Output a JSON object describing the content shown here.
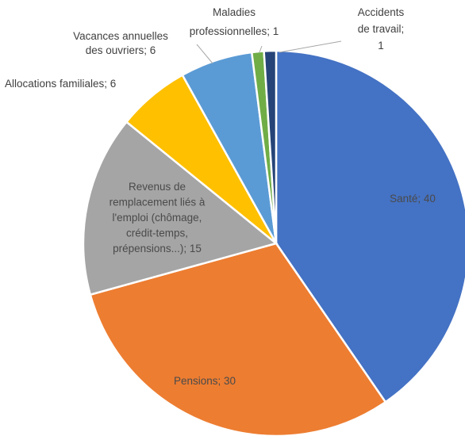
{
  "chart_data": {
    "type": "pie",
    "title": "",
    "slices": [
      {
        "label": "Santé; 40",
        "name": "Santé",
        "value": 40,
        "color": "#4472c4"
      },
      {
        "label": "Pensions; 30",
        "name": "Pensions",
        "value": 30,
        "color": "#ed7d31"
      },
      {
        "label": "Revenus de remplacement liés à l'emploi (chômage, crédit-temps, prépensions...); 15",
        "name": "Revenus de remplacement liés à l'emploi (chômage, crédit-temps, prépensions...)",
        "value": 15,
        "color": "#a5a5a5",
        "label_lines": [
          "Revenus de",
          "remplacement liés à",
          "l'emploi (chômage,",
          "crédit-temps,",
          "prépensions...); 15"
        ]
      },
      {
        "label": "Allocations familiales; 6",
        "name": "Allocations familiales",
        "value": 6,
        "color": "#ffc000"
      },
      {
        "label": "Vacances annuelles des ouvriers; 6",
        "name": "Vacances annuelles des ouvriers",
        "value": 6,
        "color": "#5b9bd5",
        "label_lines": [
          "Vacances annuelles",
          "des ouvriers; 6"
        ]
      },
      {
        "label": "Maladies professionnelles; 1",
        "name": "Maladies professionnelles",
        "value": 1,
        "color": "#70ad47",
        "label_lines": [
          "Maladies",
          "professionnelles; 1"
        ]
      },
      {
        "label": "Accidents de travail; 1",
        "name": "Accidents de travail",
        "value": 1,
        "color": "#264478",
        "label_lines": [
          "Accidents",
          "de travail;",
          "1"
        ]
      }
    ],
    "legend": "none"
  }
}
